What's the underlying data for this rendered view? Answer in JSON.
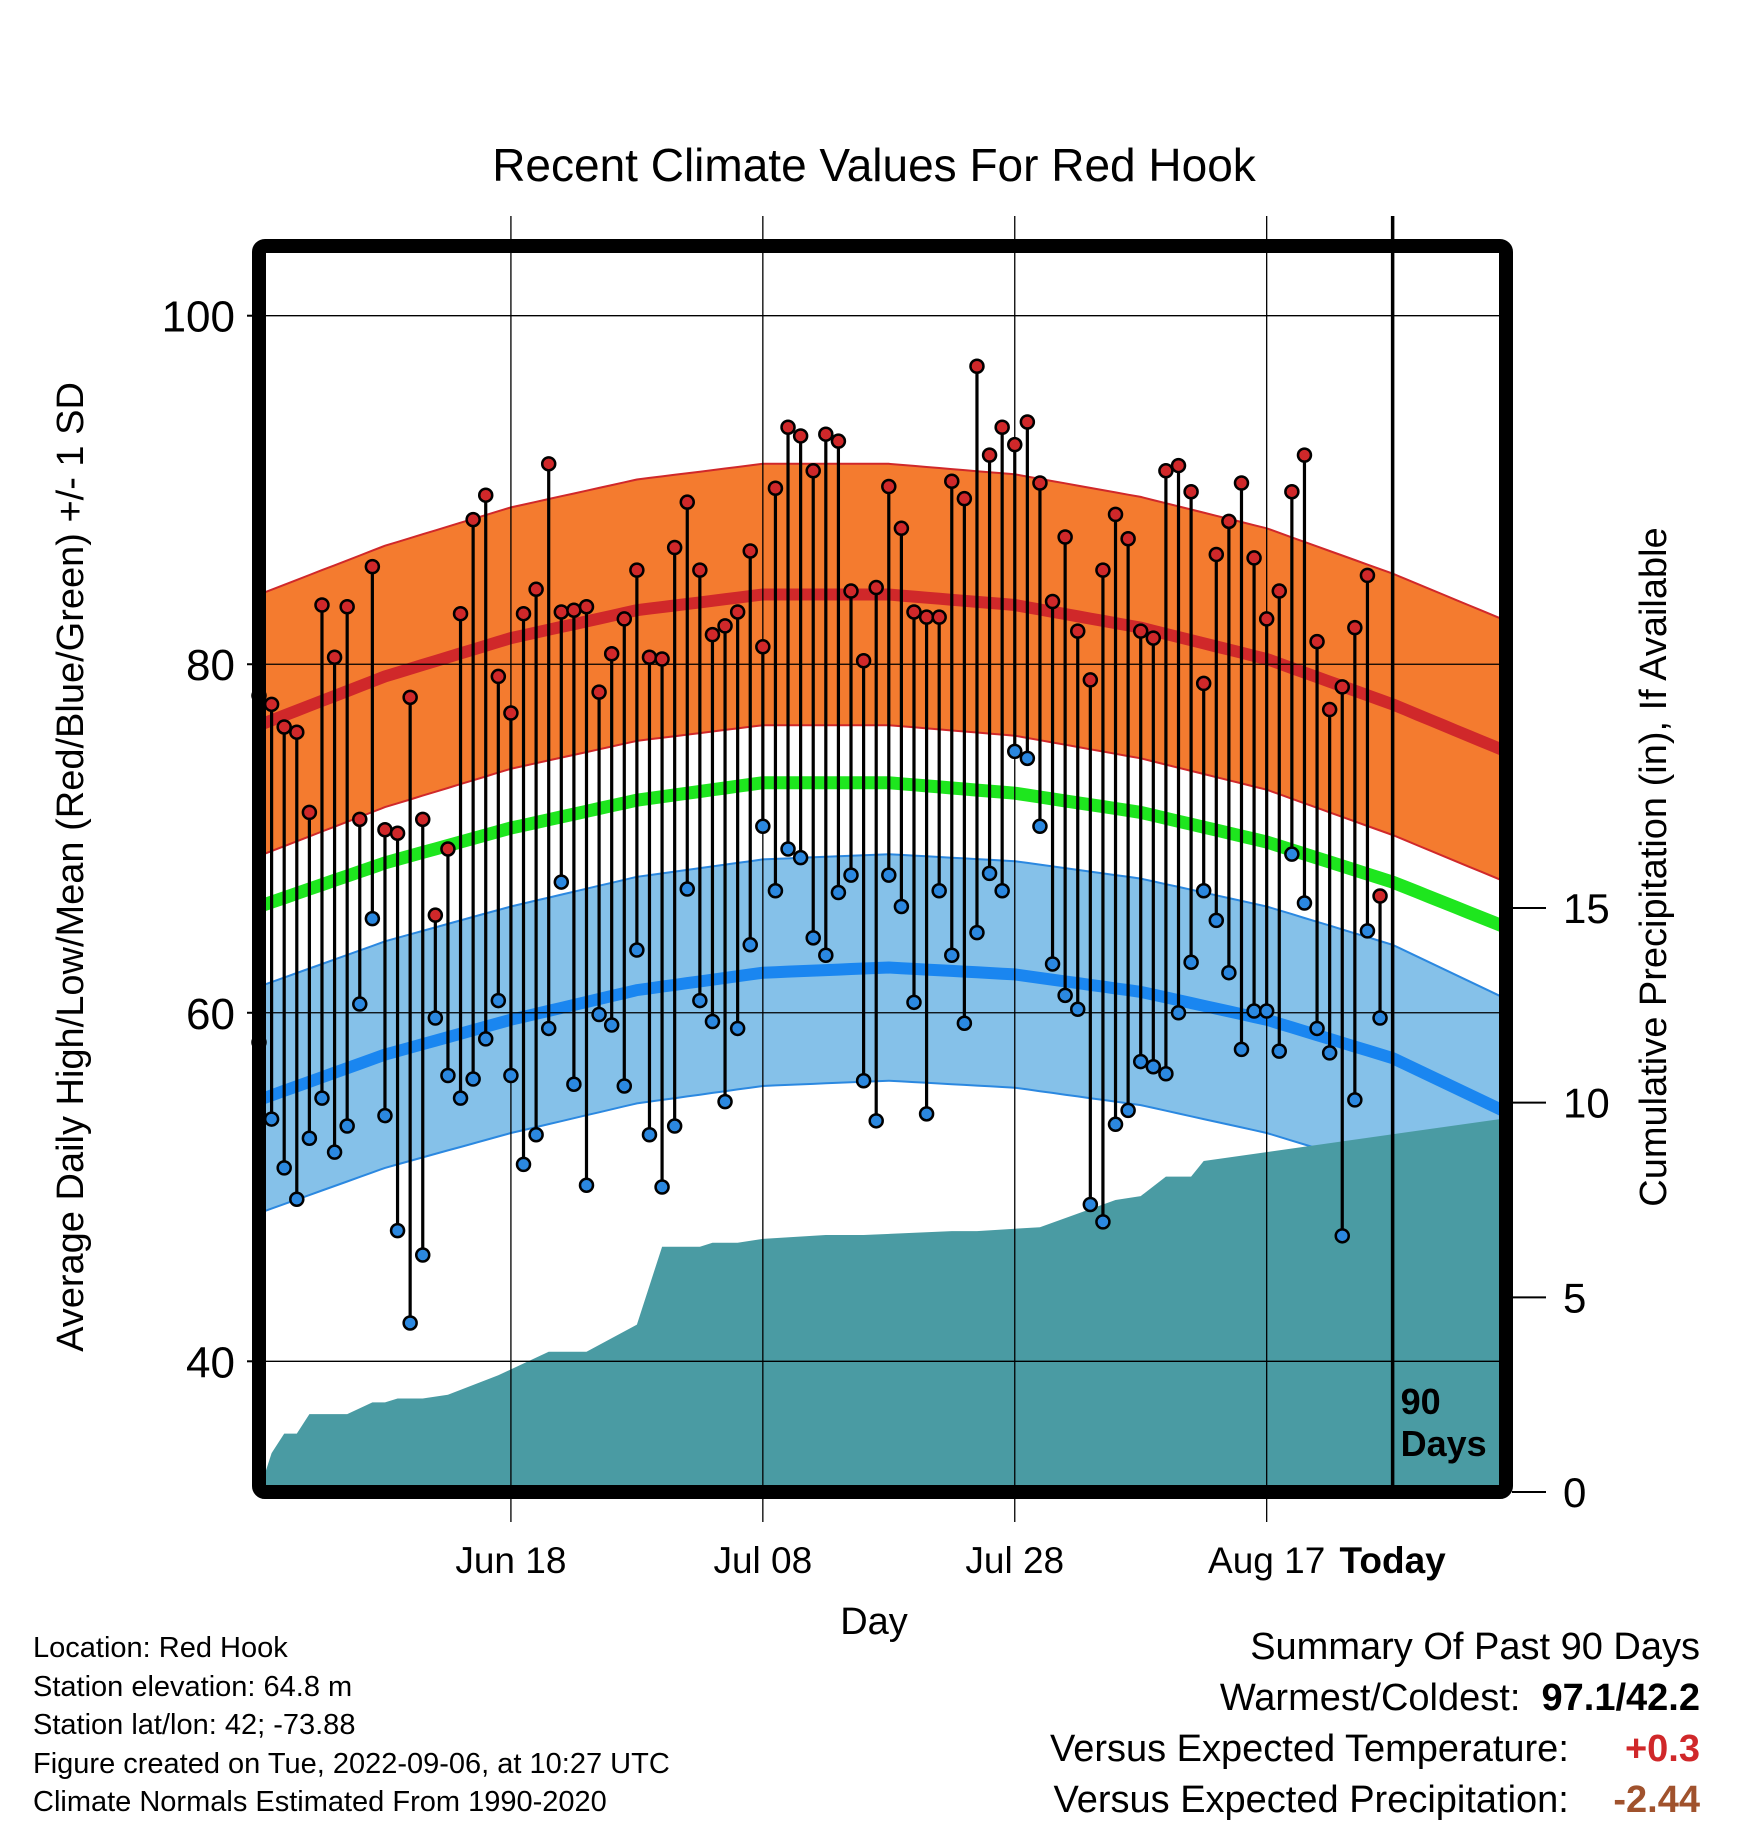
{
  "chart_data": {
    "type": "line",
    "title": "Recent Climate Values For Red Hook",
    "xlabel": "Day",
    "ylabel": "Average Daily High/Low/Mean (Red/Blue/Green) +/- 1 SD",
    "y2label": "Cumulative Precipitation (in), If Available",
    "x_ticks": [
      "Jun 18",
      "Jul 08",
      "Jul 28",
      "Aug 17",
      "Today"
    ],
    "y_ticks": [
      "40",
      "60",
      "80",
      "100"
    ],
    "y2_ticks": [
      "0",
      "5",
      "10",
      "15"
    ],
    "ylim": [
      32.5,
      104
    ],
    "y2lim": [
      0,
      32
    ],
    "xlim_days": [
      -90,
      9
    ],
    "today_label": "90 Days",
    "grid": true,
    "normals": {
      "day": [
        -90,
        -80,
        -70,
        -60,
        -50,
        -40,
        -30,
        -20,
        -10,
        0,
        9
      ],
      "high_mean": [
        76.5,
        79.3,
        81.5,
        83.1,
        84.0,
        84.0,
        83.4,
        82.1,
        80.3,
        77.7,
        75.0
      ],
      "high_sd": 7.5,
      "mean": [
        66.1,
        68.6,
        70.6,
        72.2,
        73.2,
        73.2,
        72.6,
        71.5,
        69.8,
        67.5,
        64.9
      ],
      "low_mean": [
        55.0,
        57.6,
        59.6,
        61.3,
        62.3,
        62.6,
        62.2,
        61.2,
        59.6,
        57.4,
        54.3
      ],
      "low_sd": 6.5
    },
    "series": [
      {
        "name": "High",
        "color": "#d0282a",
        "values": [
          78.2,
          77.7,
          76.4,
          76.1,
          71.5,
          83.4,
          80.4,
          83.3,
          71.1,
          85.6,
          70.5,
          70.3,
          78.1,
          71.1,
          65.6,
          69.4,
          82.9,
          88.3,
          89.7,
          79.3,
          77.2,
          82.9,
          84.3,
          91.5,
          83.0,
          83.1,
          83.3,
          78.4,
          80.6,
          82.6,
          85.4,
          80.4,
          80.3,
          86.7,
          89.3,
          85.4,
          81.7,
          82.2,
          83.0,
          86.5,
          81.0,
          90.1,
          93.6,
          93.1,
          91.1,
          93.2,
          92.8,
          84.2,
          80.2,
          84.4,
          90.2,
          87.8,
          83.0,
          82.7,
          82.7,
          90.5,
          89.5,
          97.1,
          92.0,
          93.6,
          92.6,
          93.9,
          90.4,
          83.6,
          87.3,
          81.9,
          79.1,
          85.4,
          88.6,
          87.2,
          81.9,
          81.5,
          91.1,
          91.4,
          89.9,
          78.9,
          86.3,
          88.2,
          90.4,
          86.1,
          82.6,
          84.2,
          89.9,
          92.0,
          81.3,
          77.4,
          78.7,
          82.1,
          85.1,
          66.7
        ]
      },
      {
        "name": "Low",
        "color": "#2b88e0",
        "values": [
          58.3,
          53.9,
          51.1,
          49.3,
          52.8,
          55.1,
          52.0,
          53.5,
          60.5,
          65.4,
          54.1,
          47.5,
          42.2,
          46.1,
          59.7,
          56.4,
          55.1,
          56.2,
          58.5,
          60.7,
          56.4,
          51.3,
          53.0,
          59.1,
          67.5,
          55.9,
          50.1,
          59.9,
          59.3,
          55.8,
          63.6,
          53.0,
          50.0,
          53.5,
          67.1,
          60.7,
          59.5,
          54.9,
          59.1,
          63.9,
          70.7,
          67.0,
          69.4,
          68.9,
          64.3,
          63.3,
          66.9,
          67.9,
          56.1,
          53.8,
          67.9,
          66.1,
          60.6,
          54.2,
          67.0,
          63.3,
          59.4,
          64.6,
          68.0,
          67.0,
          75.0,
          74.6,
          70.7,
          62.8,
          61.0,
          60.2,
          49.0,
          48.0,
          53.6,
          54.4,
          57.2,
          56.9,
          56.5,
          60.0,
          62.9,
          67.0,
          65.3,
          62.3,
          57.9,
          60.1,
          60.1,
          57.8,
          69.1,
          66.3,
          59.1,
          57.7,
          47.2,
          55.0,
          64.7,
          59.7
        ]
      }
    ],
    "precip_cumulative": {
      "day": [
        -90,
        -89,
        -88,
        -87,
        -86,
        -84,
        -83,
        -81,
        -80,
        -79,
        -77,
        -75,
        -71,
        -69,
        -67,
        -66,
        -64,
        -60,
        -58,
        -55,
        -54,
        -52,
        -50,
        -45,
        -42,
        -35,
        -33,
        -28,
        -22,
        -20,
        -18,
        -16,
        -15,
        9
      ],
      "inches": [
        0,
        1.0,
        1.5,
        1.5,
        2.0,
        2.0,
        2.0,
        2.3,
        2.3,
        2.4,
        2.4,
        2.5,
        3.0,
        3.3,
        3.6,
        3.6,
        3.6,
        4.3,
        6.3,
        6.3,
        6.4,
        6.4,
        6.5,
        6.6,
        6.6,
        6.7,
        6.7,
        6.8,
        7.5,
        7.6,
        8.1,
        8.1,
        8.5,
        9.6
      ]
    }
  },
  "info": {
    "location": "Location: Red Hook",
    "elevation": "Station elevation: 64.8 m",
    "latlon": "Station lat/lon: 42; -73.88",
    "created": "Figure created on Tue, 2022-09-06, at 10:27 UTC",
    "normals": "Climate Normals Estimated From 1990-2020"
  },
  "summary": {
    "title": "Summary Of Past 90 Days",
    "warmest_label": "Warmest/Coldest:",
    "warmest_value": "97.1/42.2",
    "temp_label": "Versus Expected Temperature:",
    "temp_value": "+0.3",
    "precip_label": "Versus Expected Precipitation:",
    "precip_value": "-2.44"
  }
}
